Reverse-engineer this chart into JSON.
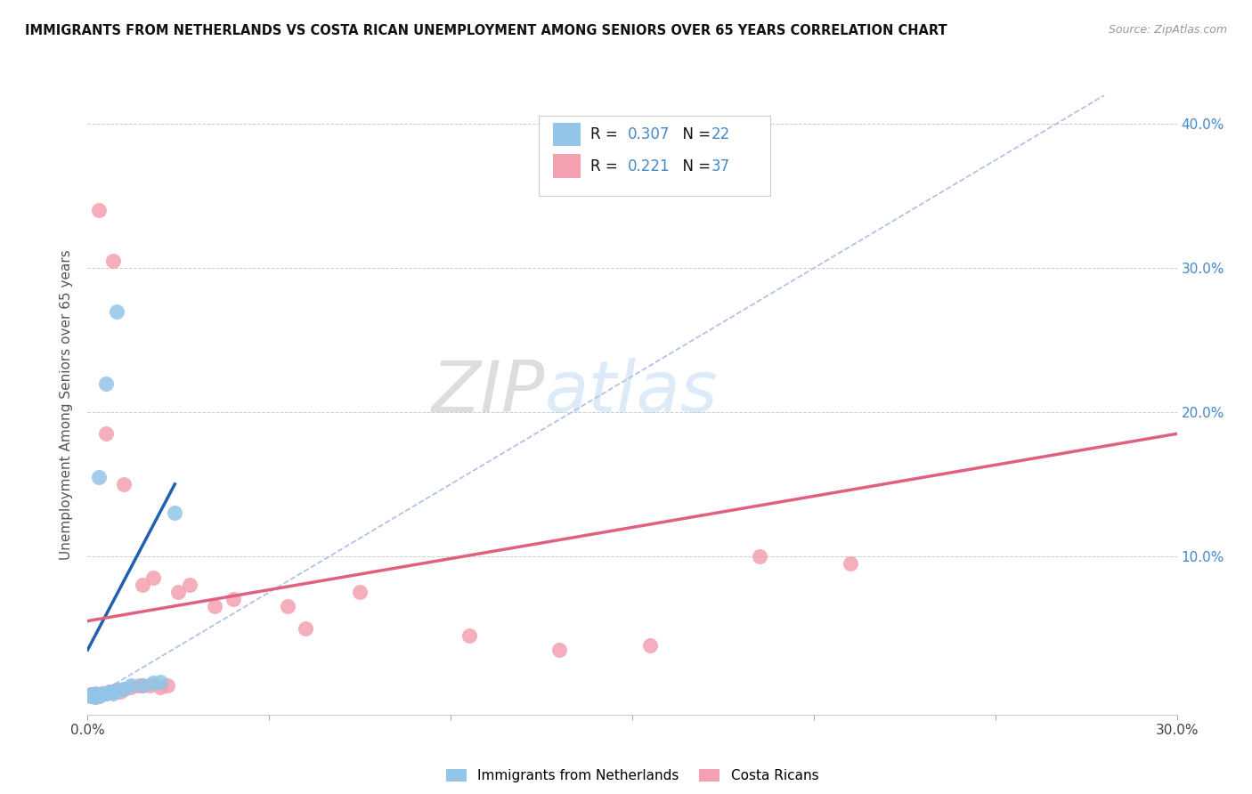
{
  "title": "IMMIGRANTS FROM NETHERLANDS VS COSTA RICAN UNEMPLOYMENT AMONG SENIORS OVER 65 YEARS CORRELATION CHART",
  "source": "Source: ZipAtlas.com",
  "ylabel": "Unemployment Among Seniors over 65 years",
  "xlim": [
    0,
    0.3
  ],
  "ylim": [
    -0.01,
    0.42
  ],
  "xticks": [
    0.0,
    0.05,
    0.1,
    0.15,
    0.2,
    0.25,
    0.3
  ],
  "xticklabels": [
    "0.0%",
    "",
    "",
    "",
    "",
    "",
    "30.0%"
  ],
  "yticks": [
    0.0,
    0.1,
    0.2,
    0.3,
    0.4
  ],
  "yticklabels_right": [
    "",
    "10.0%",
    "20.0%",
    "30.0%",
    "40.0%"
  ],
  "legend_label1": "Immigrants from Netherlands",
  "legend_label2": "Costa Ricans",
  "R1": "0.307",
  "N1": "22",
  "R2": "0.221",
  "N2": "37",
  "blue_color": "#92C5E8",
  "pink_color": "#F4A0B0",
  "blue_line_color": "#2060B0",
  "pink_line_color": "#E06080",
  "diag_color": "#AABFE8",
  "watermark_color": "#C8DCF0",
  "blue_scatter": [
    [
      0.001,
      0.003
    ],
    [
      0.001,
      0.004
    ],
    [
      0.002,
      0.002
    ],
    [
      0.002,
      0.003
    ],
    [
      0.002,
      0.005
    ],
    [
      0.003,
      0.003
    ],
    [
      0.003,
      0.004
    ],
    [
      0.004,
      0.004
    ],
    [
      0.004,
      0.005
    ],
    [
      0.005,
      0.005
    ],
    [
      0.006,
      0.006
    ],
    [
      0.007,
      0.005
    ],
    [
      0.008,
      0.007
    ],
    [
      0.01,
      0.008
    ],
    [
      0.012,
      0.01
    ],
    [
      0.015,
      0.01
    ],
    [
      0.018,
      0.012
    ],
    [
      0.02,
      0.013
    ],
    [
      0.024,
      0.13
    ],
    [
      0.003,
      0.155
    ],
    [
      0.005,
      0.22
    ],
    [
      0.008,
      0.27
    ]
  ],
  "pink_scatter": [
    [
      0.001,
      0.003
    ],
    [
      0.001,
      0.004
    ],
    [
      0.002,
      0.002
    ],
    [
      0.002,
      0.004
    ],
    [
      0.003,
      0.003
    ],
    [
      0.003,
      0.004
    ],
    [
      0.004,
      0.005
    ],
    [
      0.005,
      0.005
    ],
    [
      0.006,
      0.006
    ],
    [
      0.007,
      0.006
    ],
    [
      0.008,
      0.007
    ],
    [
      0.009,
      0.006
    ],
    [
      0.01,
      0.008
    ],
    [
      0.012,
      0.009
    ],
    [
      0.014,
      0.01
    ],
    [
      0.015,
      0.01
    ],
    [
      0.017,
      0.01
    ],
    [
      0.02,
      0.009
    ],
    [
      0.022,
      0.01
    ],
    [
      0.025,
      0.075
    ],
    [
      0.028,
      0.08
    ],
    [
      0.035,
      0.065
    ],
    [
      0.04,
      0.07
    ],
    [
      0.055,
      0.065
    ],
    [
      0.075,
      0.075
    ],
    [
      0.003,
      0.34
    ],
    [
      0.007,
      0.305
    ],
    [
      0.005,
      0.185
    ],
    [
      0.01,
      0.15
    ],
    [
      0.015,
      0.08
    ],
    [
      0.018,
      0.085
    ],
    [
      0.06,
      0.05
    ],
    [
      0.105,
      0.045
    ],
    [
      0.13,
      0.035
    ],
    [
      0.155,
      0.038
    ],
    [
      0.185,
      0.1
    ],
    [
      0.21,
      0.095
    ]
  ],
  "blue_trend_x": [
    0.0,
    0.024
  ],
  "blue_trend_y": [
    0.035,
    0.15
  ],
  "pink_trend_x": [
    0.0,
    0.3
  ],
  "pink_trend_y": [
    0.055,
    0.185
  ],
  "diag_line_x": [
    0.0,
    0.28
  ],
  "diag_line_y": [
    0.0,
    0.42
  ]
}
